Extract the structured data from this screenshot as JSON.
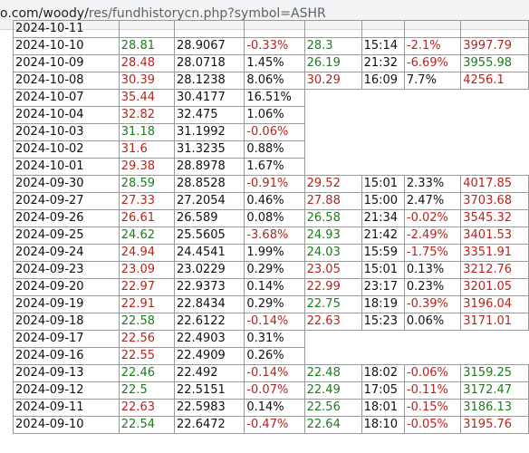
{
  "browser": {
    "url_host": "o.com/woody/",
    "url_path": "res/fundhistorycn.php?symbol=ASHR"
  },
  "colors": {
    "up": "#1e7b1e",
    "down": "#b3261e",
    "neutral": "#111111"
  },
  "rows": [
    [
      "2024-10-11",
      "",
      "",
      "",
      "",
      "",
      "",
      ""
    ],
    [
      "2024-10-10",
      "28.81",
      "28.9067",
      "-0.33%",
      "28.3",
      "15:14",
      "-2.1%",
      "3997.79"
    ],
    [
      "2024-10-09",
      "28.48",
      "28.0718",
      "1.45%",
      "26.19",
      "21:32",
      "-6.69%",
      "3955.98"
    ],
    [
      "2024-10-08",
      "30.39",
      "28.1238",
      "8.06%",
      "30.29",
      "16:09",
      "7.7%",
      "4256.1"
    ],
    [
      "2024-10-07",
      "35.44",
      "30.4177",
      "16.51%"
    ],
    [
      "2024-10-04",
      "32.82",
      "32.475",
      "1.06%"
    ],
    [
      "2024-10-03",
      "31.18",
      "31.1992",
      "-0.06%"
    ],
    [
      "2024-10-02",
      "31.6",
      "31.3235",
      "0.88%"
    ],
    [
      "2024-10-01",
      "29.38",
      "28.8978",
      "1.67%"
    ],
    [
      "2024-09-30",
      "28.59",
      "28.8528",
      "-0.91%",
      "29.52",
      "15:01",
      "2.33%",
      "4017.85"
    ],
    [
      "2024-09-27",
      "27.33",
      "27.2054",
      "0.46%",
      "27.88",
      "15:00",
      "2.47%",
      "3703.68"
    ],
    [
      "2024-09-26",
      "26.61",
      "26.589",
      "0.08%",
      "26.58",
      "21:34",
      "-0.02%",
      "3545.32"
    ],
    [
      "2024-09-25",
      "24.62",
      "25.5605",
      "-3.68%",
      "24.93",
      "21:42",
      "-2.49%",
      "3401.53"
    ],
    [
      "2024-09-24",
      "24.94",
      "24.4541",
      "1.99%",
      "24.03",
      "15:59",
      "-1.75%",
      "3351.91"
    ],
    [
      "2024-09-23",
      "23.09",
      "23.0229",
      "0.29%",
      "23.05",
      "15:01",
      "0.13%",
      "3212.76"
    ],
    [
      "2024-09-20",
      "22.97",
      "22.9373",
      "0.14%",
      "22.99",
      "23:17",
      "0.23%",
      "3201.05"
    ],
    [
      "2024-09-19",
      "22.91",
      "22.8434",
      "0.29%",
      "22.75",
      "18:19",
      "-0.39%",
      "3196.04"
    ],
    [
      "2024-09-18",
      "22.58",
      "22.6122",
      "-0.14%",
      "22.63",
      "15:23",
      "0.06%",
      "3171.01"
    ],
    [
      "2024-09-17",
      "22.56",
      "22.4903",
      "0.31%"
    ],
    [
      "2024-09-16",
      "22.55",
      "22.4909",
      "0.26%"
    ],
    [
      "2024-09-13",
      "22.46",
      "22.492",
      "-0.14%",
      "22.48",
      "18:02",
      "-0.06%",
      "3159.25"
    ],
    [
      "2024-09-12",
      "22.5",
      "22.5151",
      "-0.07%",
      "22.49",
      "17:05",
      "-0.11%",
      "3172.47"
    ],
    [
      "2024-09-11",
      "22.63",
      "22.5983",
      "0.14%",
      "22.56",
      "18:01",
      "-0.15%",
      "3186.13"
    ],
    [
      "2024-09-10",
      "22.54",
      "22.6472",
      "-0.47%",
      "22.64",
      "18:10",
      "-0.05%",
      "3195.76"
    ]
  ],
  "row_colors": [
    [
      "k",
      "g",
      "k",
      "r",
      "g",
      "k",
      "r",
      "r"
    ],
    [
      "k",
      "g",
      "k",
      "r",
      "g",
      "k",
      "r",
      "r"
    ],
    [
      "k",
      "r",
      "k",
      "k",
      "g",
      "k",
      "r",
      "g"
    ],
    [
      "k",
      "r",
      "k",
      "k",
      "r",
      "k",
      "k",
      "r"
    ],
    [
      "k",
      "r",
      "k",
      "k"
    ],
    [
      "k",
      "r",
      "k",
      "k"
    ],
    [
      "k",
      "g",
      "k",
      "r"
    ],
    [
      "k",
      "r",
      "k",
      "k"
    ],
    [
      "k",
      "r",
      "k",
      "k"
    ],
    [
      "k",
      "g",
      "k",
      "r",
      "r",
      "k",
      "k",
      "r"
    ],
    [
      "k",
      "r",
      "k",
      "k",
      "r",
      "k",
      "k",
      "r"
    ],
    [
      "k",
      "r",
      "k",
      "k",
      "g",
      "k",
      "r",
      "r"
    ],
    [
      "k",
      "g",
      "k",
      "r",
      "g",
      "k",
      "r",
      "r"
    ],
    [
      "k",
      "r",
      "k",
      "k",
      "g",
      "k",
      "r",
      "r"
    ],
    [
      "k",
      "r",
      "k",
      "k",
      "r",
      "k",
      "k",
      "r"
    ],
    [
      "k",
      "r",
      "k",
      "k",
      "r",
      "k",
      "k",
      "r"
    ],
    [
      "k",
      "r",
      "k",
      "k",
      "g",
      "k",
      "r",
      "r"
    ],
    [
      "k",
      "g",
      "k",
      "r",
      "r",
      "k",
      "k",
      "r"
    ],
    [
      "k",
      "r",
      "k",
      "k"
    ],
    [
      "k",
      "r",
      "k",
      "k"
    ],
    [
      "k",
      "g",
      "k",
      "r",
      "g",
      "k",
      "r",
      "g"
    ],
    [
      "k",
      "g",
      "k",
      "r",
      "g",
      "k",
      "r",
      "g"
    ],
    [
      "k",
      "r",
      "k",
      "k",
      "g",
      "k",
      "r",
      "g"
    ],
    [
      "k",
      "g",
      "k",
      "r",
      "g",
      "k",
      "r",
      "r"
    ]
  ]
}
